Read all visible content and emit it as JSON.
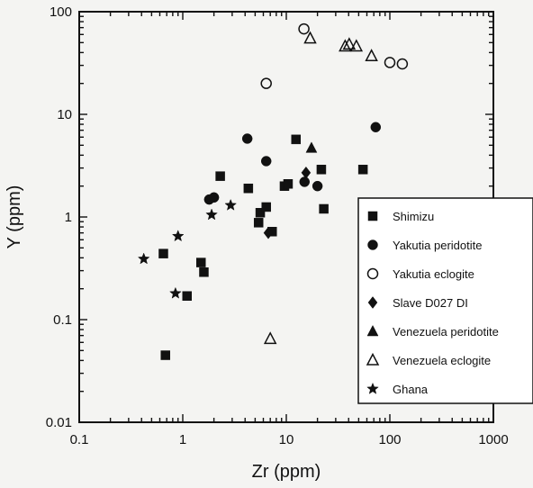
{
  "chart_data": {
    "type": "scatter",
    "xlabel": "Zr (ppm)",
    "ylabel": "Y (ppm)",
    "xscale": "log",
    "yscale": "log",
    "xlim": [
      0.1,
      1000
    ],
    "ylim": [
      0.01,
      100
    ],
    "x_ticks": [
      {
        "value": 0.1,
        "label": "0.1"
      },
      {
        "value": 1,
        "label": "1"
      },
      {
        "value": 10,
        "label": "10"
      },
      {
        "value": 100,
        "label": "100"
      },
      {
        "value": 1000,
        "label": "1000"
      }
    ],
    "y_ticks": [
      {
        "value": 0.01,
        "label": "0.01"
      },
      {
        "value": 0.1,
        "label": "0.1"
      },
      {
        "value": 1,
        "label": "1"
      },
      {
        "value": 10,
        "label": "10"
      },
      {
        "value": 100,
        "label": "100"
      }
    ],
    "grid": false,
    "legend_position": "bottom-right",
    "series": [
      {
        "name": "Shimizu",
        "marker": "square",
        "filled": true,
        "points": [
          [
            0.68,
            0.045
          ],
          [
            0.65,
            0.44
          ],
          [
            1.1,
            0.17
          ],
          [
            1.5,
            0.36
          ],
          [
            1.6,
            0.29
          ],
          [
            2.3,
            2.5
          ],
          [
            4.3,
            1.9
          ],
          [
            5.4,
            0.88
          ],
          [
            5.6,
            1.1
          ],
          [
            6.4,
            1.25
          ],
          [
            7.3,
            0.72
          ],
          [
            9.6,
            2.0
          ],
          [
            10.4,
            2.1
          ],
          [
            12.4,
            5.7
          ],
          [
            21.8,
            2.9
          ],
          [
            23.0,
            1.2
          ],
          [
            55.0,
            2.9
          ]
        ]
      },
      {
        "name": "Yakutia peridotite",
        "marker": "circle",
        "filled": true,
        "points": [
          [
            1.8,
            1.48
          ],
          [
            2.0,
            1.55
          ],
          [
            4.2,
            5.8
          ],
          [
            6.4,
            3.5
          ],
          [
            15.0,
            2.2
          ],
          [
            20.0,
            2.0
          ],
          [
            73.0,
            7.5
          ]
        ]
      },
      {
        "name": "Yakutia eclogite",
        "marker": "circle",
        "filled": false,
        "points": [
          [
            6.4,
            20.0
          ],
          [
            14.8,
            68.0
          ],
          [
            100.0,
            32.0
          ],
          [
            132.0,
            31.0
          ]
        ]
      },
      {
        "name": "Slave D027 DI",
        "marker": "diamond",
        "filled": true,
        "points": [
          [
            6.7,
            0.7
          ],
          [
            15.5,
            2.7
          ]
        ]
      },
      {
        "name": "Venezuela peridotite",
        "marker": "triangle",
        "filled": true,
        "points": [
          [
            17.5,
            4.7
          ]
        ]
      },
      {
        "name": "Venezuela eclogite",
        "marker": "triangle",
        "filled": false,
        "points": [
          [
            7.0,
            0.065
          ],
          [
            17.0,
            55.0
          ],
          [
            37.0,
            46.0
          ],
          [
            40.5,
            48.0
          ],
          [
            47.5,
            46.0
          ],
          [
            66.5,
            37.0
          ]
        ]
      },
      {
        "name": "Ghana",
        "marker": "star",
        "filled": true,
        "points": [
          [
            0.42,
            0.39
          ],
          [
            0.9,
            0.65
          ],
          [
            0.85,
            0.18
          ],
          [
            1.9,
            1.05
          ],
          [
            2.9,
            1.3
          ]
        ]
      }
    ]
  }
}
